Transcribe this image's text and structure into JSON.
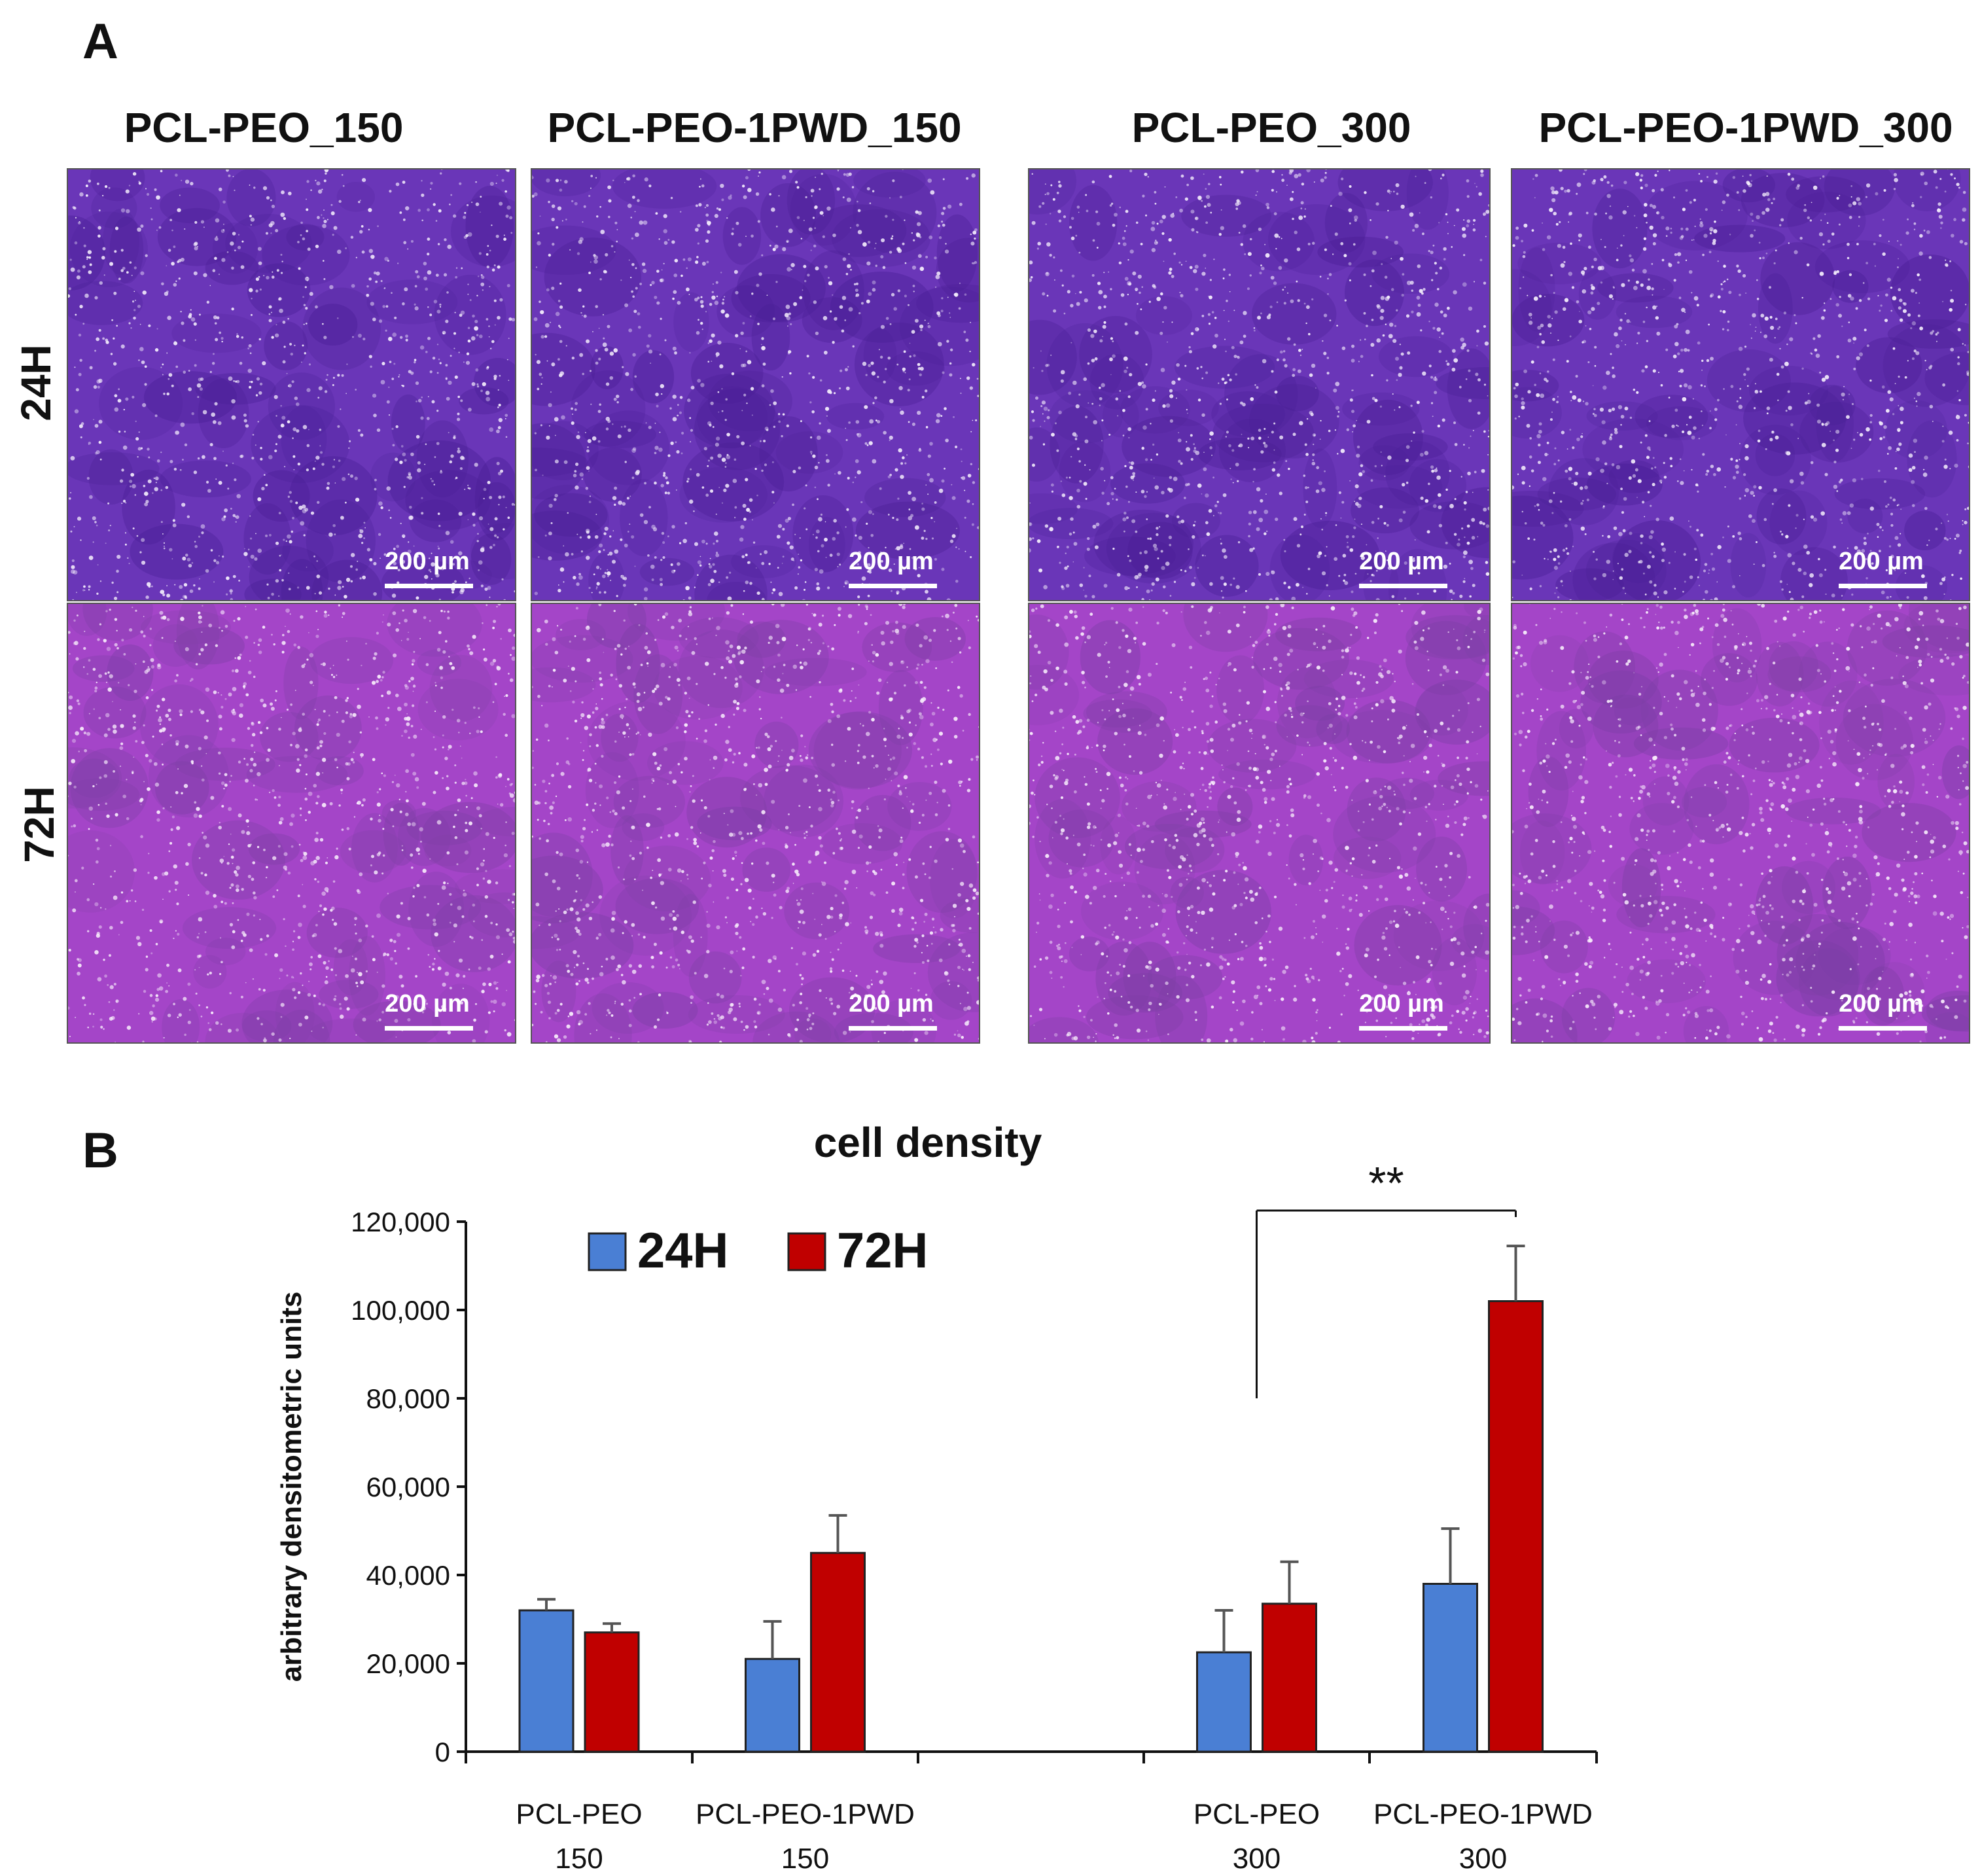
{
  "panel_a": {
    "letter": "A",
    "columns": [
      "PCL-PEO_150",
      "PCL-PEO-1PWD_150",
      "PCL-PEO_300",
      "PCL-PEO-1PWD_300"
    ],
    "rows": [
      "24H",
      "72H"
    ],
    "scale_bar_label": "200 µm",
    "stain_colors": {
      "24H": {
        "base": "#6a36b8",
        "dark": "#4a1f96",
        "light": "#f4eefc"
      },
      "72H": {
        "base": "#a445c8",
        "dark": "#7d3fa6",
        "light": "#f7ecfb"
      }
    }
  },
  "panel_b": {
    "letter": "B"
  },
  "chart_data": {
    "type": "bar",
    "title": "cell density",
    "ylabel": "arbitrary densitometric units",
    "xlabel": "",
    "ylim": [
      0,
      120000
    ],
    "yticks": [
      0,
      20000,
      40000,
      60000,
      80000,
      100000,
      120000
    ],
    "ytick_labels": [
      "0",
      "20,000",
      "40,000",
      "60,000",
      "80,000",
      "100,000",
      "120,000"
    ],
    "categories": [
      [
        "PCL-PEO",
        "150"
      ],
      [
        "PCL-PEO-1PWD",
        "150"
      ],
      [
        "PCL-PEO",
        "300"
      ],
      [
        "PCL-PEO-1PWD",
        "300"
      ]
    ],
    "series": [
      {
        "name": "24H",
        "color": "#4a7fd4",
        "values": [
          32000,
          21000,
          22500,
          38000
        ],
        "errors": [
          2500,
          8500,
          9500,
          12500
        ]
      },
      {
        "name": "72H",
        "color": "#c00000",
        "values": [
          27000,
          45000,
          33500,
          102000
        ],
        "errors": [
          2000,
          8500,
          9500,
          12500
        ]
      }
    ],
    "legend_position": "top-left",
    "grid": false,
    "significance": {
      "label": "**",
      "from_category": 2,
      "to_category": 3
    }
  }
}
